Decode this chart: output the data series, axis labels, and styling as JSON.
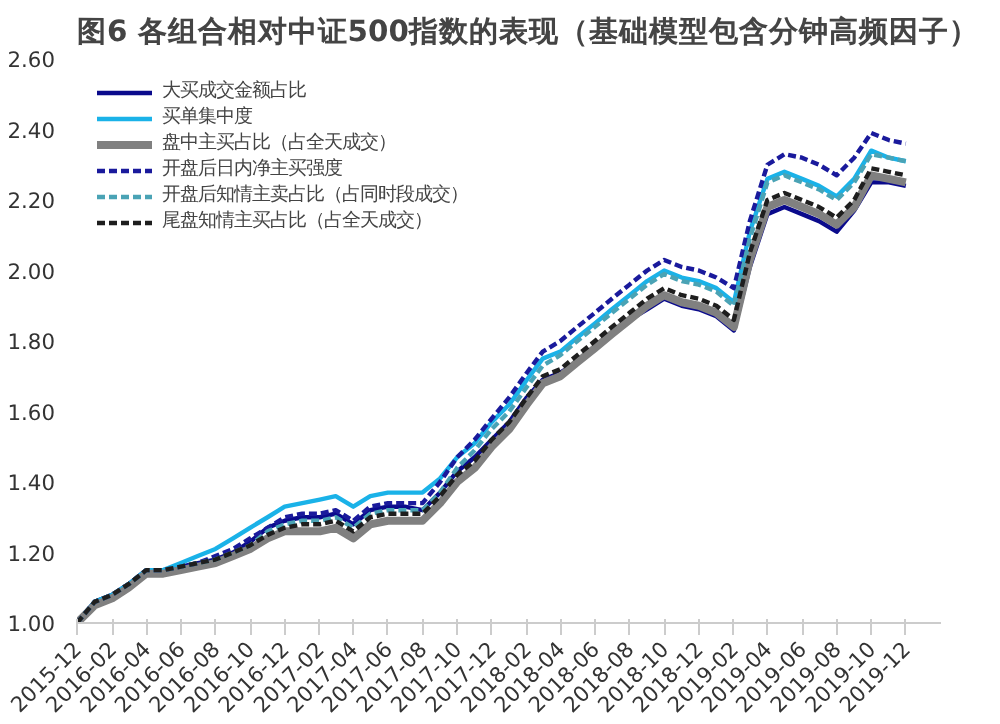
{
  "chart_data": {
    "type": "line",
    "title": "图6 各组合相对中证500指数的表现（基础模型包含分钟高频因子）",
    "x": [
      "2015-12",
      "2016-01",
      "2016-02",
      "2016-03",
      "2016-04",
      "2016-05",
      "2016-06",
      "2016-07",
      "2016-08",
      "2016-09",
      "2016-10",
      "2016-11",
      "2016-12",
      "2017-01",
      "2017-02",
      "2017-03",
      "2017-04",
      "2017-05",
      "2017-06",
      "2017-07",
      "2017-08",
      "2017-09",
      "2017-10",
      "2017-11",
      "2017-12",
      "2018-01",
      "2018-02",
      "2018-03",
      "2018-04",
      "2018-05",
      "2018-06",
      "2018-07",
      "2018-08",
      "2018-09",
      "2018-10",
      "2018-11",
      "2018-12",
      "2019-01",
      "2019-02",
      "2019-03",
      "2019-04",
      "2019-05",
      "2019-06",
      "2019-07",
      "2019-08",
      "2019-09",
      "2019-10",
      "2019-11",
      "2019-12"
    ],
    "series": [
      {
        "name": "大买成交金额占比",
        "color": "#0a0a8c",
        "line_style": "solid",
        "values": [
          1.0,
          1.06,
          1.08,
          1.11,
          1.15,
          1.15,
          1.16,
          1.17,
          1.18,
          1.2,
          1.23,
          1.27,
          1.29,
          1.3,
          1.3,
          1.31,
          1.28,
          1.32,
          1.33,
          1.33,
          1.32,
          1.37,
          1.43,
          1.47,
          1.52,
          1.57,
          1.64,
          1.69,
          1.71,
          1.74,
          1.78,
          1.82,
          1.86,
          1.89,
          1.92,
          1.9,
          1.89,
          1.87,
          1.83,
          2.01,
          2.16,
          2.18,
          2.16,
          2.14,
          2.11,
          2.17,
          2.25,
          2.25,
          2.24
        ]
      },
      {
        "name": "买单集中度",
        "color": "#1ab2e8",
        "line_style": "solid",
        "values": [
          1.0,
          1.06,
          1.08,
          1.11,
          1.15,
          1.15,
          1.17,
          1.19,
          1.21,
          1.24,
          1.27,
          1.3,
          1.33,
          1.34,
          1.35,
          1.36,
          1.33,
          1.36,
          1.37,
          1.37,
          1.37,
          1.41,
          1.47,
          1.51,
          1.57,
          1.62,
          1.69,
          1.75,
          1.77,
          1.81,
          1.85,
          1.89,
          1.93,
          1.97,
          2.0,
          1.98,
          1.97,
          1.95,
          1.91,
          2.11,
          2.26,
          2.28,
          2.26,
          2.24,
          2.21,
          2.26,
          2.34,
          2.32,
          2.31
        ]
      },
      {
        "name": "盘中主买占比（占全天成交）",
        "color": "#808080",
        "line_style": "solid",
        "values": [
          1.0,
          1.05,
          1.07,
          1.1,
          1.14,
          1.14,
          1.15,
          1.16,
          1.17,
          1.19,
          1.21,
          1.24,
          1.26,
          1.26,
          1.26,
          1.27,
          1.24,
          1.28,
          1.29,
          1.29,
          1.29,
          1.34,
          1.4,
          1.44,
          1.5,
          1.55,
          1.62,
          1.68,
          1.7,
          1.74,
          1.78,
          1.82,
          1.86,
          1.9,
          1.93,
          1.91,
          1.9,
          1.88,
          1.84,
          2.03,
          2.18,
          2.2,
          2.18,
          2.16,
          2.13,
          2.18,
          2.27,
          2.26,
          2.25
        ]
      },
      {
        "name": "开盘后日内净主买强度",
        "color": "#1a1a9c",
        "line_style": "dashed",
        "values": [
          1.0,
          1.06,
          1.08,
          1.11,
          1.15,
          1.15,
          1.16,
          1.17,
          1.19,
          1.21,
          1.24,
          1.27,
          1.3,
          1.31,
          1.31,
          1.32,
          1.29,
          1.33,
          1.34,
          1.34,
          1.34,
          1.4,
          1.47,
          1.52,
          1.58,
          1.64,
          1.71,
          1.77,
          1.8,
          1.84,
          1.88,
          1.92,
          1.96,
          2.0,
          2.03,
          2.01,
          2.0,
          1.98,
          1.95,
          2.14,
          2.3,
          2.33,
          2.32,
          2.3,
          2.27,
          2.32,
          2.39,
          2.37,
          2.36
        ]
      },
      {
        "name": "开盘后知情主卖占比（占同时段成交）",
        "color": "#4aa3b5",
        "line_style": "dashed",
        "values": [
          1.0,
          1.06,
          1.08,
          1.11,
          1.15,
          1.15,
          1.16,
          1.17,
          1.18,
          1.2,
          1.22,
          1.26,
          1.28,
          1.29,
          1.29,
          1.3,
          1.27,
          1.31,
          1.32,
          1.32,
          1.32,
          1.37,
          1.44,
          1.49,
          1.55,
          1.6,
          1.67,
          1.73,
          1.76,
          1.8,
          1.84,
          1.88,
          1.92,
          1.96,
          1.99,
          1.97,
          1.96,
          1.94,
          1.9,
          2.09,
          2.25,
          2.27,
          2.25,
          2.23,
          2.2,
          2.25,
          2.33,
          2.32,
          2.31
        ]
      },
      {
        "name": "尾盘知情主买占比（占全天成交）",
        "color": "#1e1e1e",
        "line_style": "dashed",
        "values": [
          1.0,
          1.06,
          1.08,
          1.11,
          1.15,
          1.15,
          1.16,
          1.17,
          1.18,
          1.2,
          1.22,
          1.25,
          1.27,
          1.28,
          1.28,
          1.29,
          1.26,
          1.3,
          1.31,
          1.31,
          1.31,
          1.36,
          1.42,
          1.46,
          1.52,
          1.57,
          1.64,
          1.7,
          1.72,
          1.76,
          1.8,
          1.84,
          1.88,
          1.92,
          1.95,
          1.93,
          1.92,
          1.9,
          1.86,
          2.05,
          2.2,
          2.22,
          2.2,
          2.18,
          2.15,
          2.2,
          2.29,
          2.28,
          2.27
        ]
      }
    ],
    "ylim": [
      1.0,
      2.6
    ],
    "yticks": [
      {
        "value": 1.0,
        "label": "1.00"
      },
      {
        "value": 1.2,
        "label": "1.20"
      },
      {
        "value": 1.4,
        "label": "1.40"
      },
      {
        "value": 1.6,
        "label": "1.60"
      },
      {
        "value": 1.8,
        "label": "1.80"
      },
      {
        "value": 2.0,
        "label": "2.00"
      },
      {
        "value": 2.2,
        "label": "2.20"
      },
      {
        "value": 2.4,
        "label": "2.40"
      },
      {
        "value": 2.6,
        "label": "2.60"
      }
    ],
    "xlim": [
      "2015-12",
      "2020-02"
    ],
    "xticks": [
      "2015-12",
      "2016-02",
      "2016-04",
      "2016-06",
      "2016-08",
      "2016-10",
      "2016-12",
      "2017-02",
      "2017-04",
      "2017-06",
      "2017-08",
      "2017-10",
      "2017-12",
      "2018-02",
      "2018-04",
      "2018-06",
      "2018-08",
      "2018-10",
      "2018-12",
      "2019-02",
      "2019-04",
      "2019-06",
      "2019-08",
      "2019-10",
      "2019-12"
    ],
    "legend": "top left"
  }
}
